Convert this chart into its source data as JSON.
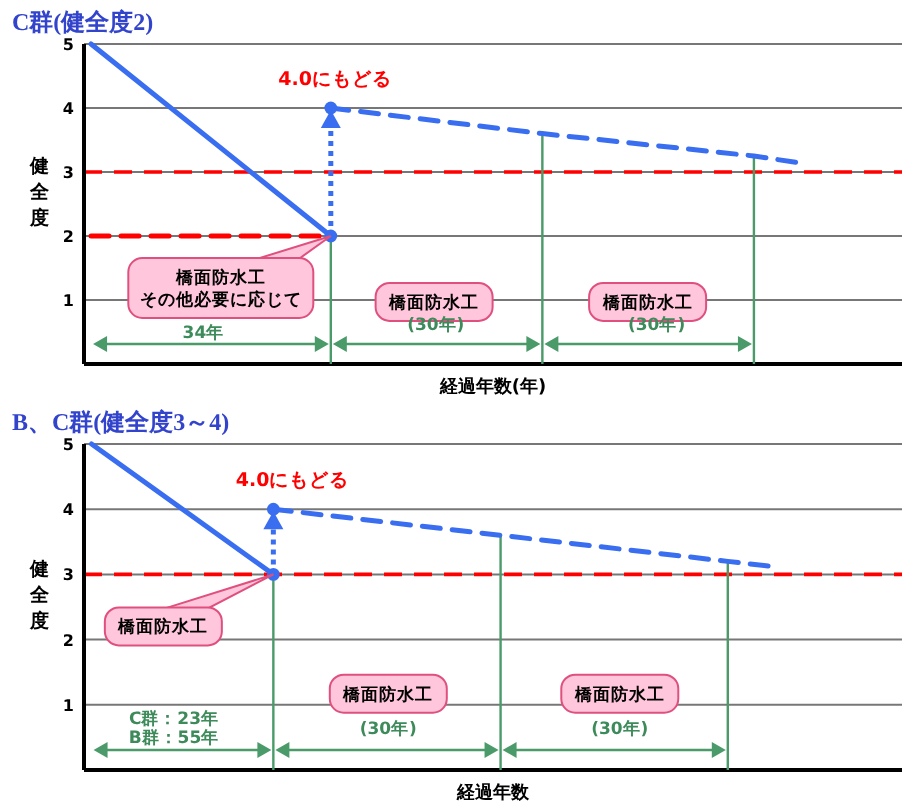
{
  "chart_data": [
    {
      "type": "line",
      "title": "C群(健全度2)",
      "xlabel": "経過年数(年)",
      "ylabel": "健全度",
      "ylim": [
        0,
        5
      ],
      "yticks": [
        1,
        2,
        3,
        4,
        5
      ],
      "tick_labels": "y",
      "grid": "y",
      "categories": [
        null,
        null,
        null,
        null,
        null,
        null,
        null,
        null,
        null,
        null,
        null,
        null,
        null,
        null,
        null,
        null,
        null,
        null,
        null,
        null,
        null,
        null,
        null,
        null,
        null,
        null,
        null,
        null,
        null,
        null,
        null,
        null,
        null,
        null,
        null,
        null,
        null,
        null,
        null,
        null,
        null,
        null,
        null,
        null,
        null,
        null,
        null,
        null,
        null,
        null,
        null,
        null,
        null,
        null,
        null,
        null,
        null,
        null
      ],
      "series": [
        {
          "color": "#3a6ef0",
          "line_style": "solid",
          "values": [
            5,
            null,
            null,
            null,
            null,
            null,
            null,
            null,
            null,
            null,
            null,
            null,
            null,
            null,
            null,
            null,
            null,
            2,
            null,
            null,
            null,
            null,
            null,
            null,
            null,
            null,
            null,
            null,
            null,
            null,
            null,
            null,
            null,
            null,
            null,
            null,
            null,
            null,
            null,
            null,
            null,
            null,
            null,
            null,
            null,
            null,
            null,
            null,
            null,
            null,
            null,
            null,
            null,
            null,
            null,
            null,
            null,
            null
          ]
        },
        {
          "color": "#ff0000",
          "line_style": "dashed",
          "values": [
            2,
            null,
            null,
            null,
            null,
            null,
            null,
            null,
            null,
            null,
            null,
            null,
            null,
            null,
            null,
            null,
            null,
            2,
            null,
            null,
            null,
            null,
            null,
            null,
            null,
            null,
            null,
            null,
            null,
            null,
            null,
            null,
            null,
            null,
            null,
            null,
            null,
            null,
            null,
            null,
            null,
            null,
            null,
            null,
            null,
            null,
            null,
            null,
            null,
            null,
            null,
            null,
            null,
            null,
            null,
            null,
            null,
            null
          ]
        },
        {
          "color": "#3a6ef0",
          "line_style": "dashed",
          "values": [
            null,
            null,
            null,
            null,
            null,
            null,
            null,
            null,
            null,
            null,
            null,
            null,
            null,
            null,
            null,
            null,
            null,
            4,
            null,
            null,
            null,
            null,
            null,
            null,
            null,
            null,
            null,
            null,
            null,
            null,
            null,
            null,
            3.6,
            null,
            null,
            null,
            null,
            null,
            null,
            null,
            null,
            null,
            null,
            null,
            null,
            null,
            null,
            3.25,
            null,
            null,
            3.15,
            null,
            null,
            null,
            null,
            null,
            null,
            null
          ]
        }
      ],
      "ref_lines": [
        {
          "axis": "y",
          "value": 3,
          "color": "#ff0000",
          "line_style": "dashed"
        }
      ],
      "annotations": [
        "橋面防水工その他必要に応じて",
        "橋面防水工",
        "橋面防水工",
        "34年",
        "(30年)",
        "(30年)",
        "4.0にもどる"
      ]
    },
    {
      "type": "line",
      "title": "B、C群(健全度3～4)",
      "xlabel": "経過年数",
      "ylabel": "健全度",
      "ylim": [
        0,
        5
      ],
      "yticks": [
        1,
        2,
        3,
        4,
        5
      ],
      "tick_labels": "y",
      "grid": "y",
      "categories": [
        null,
        null,
        null,
        null,
        null,
        null,
        null,
        null,
        null,
        null,
        null,
        null,
        null,
        null,
        null,
        null,
        null,
        null,
        null,
        null,
        null,
        null,
        null,
        null,
        null,
        null,
        null,
        null,
        null,
        null,
        null,
        null,
        null,
        null,
        null,
        null,
        null,
        null,
        null,
        null,
        null,
        null,
        null,
        null,
        null,
        null,
        null,
        null,
        null,
        null,
        null,
        null,
        null,
        null
      ],
      "series": [
        {
          "color": "#3a6ef0",
          "line_style": "solid",
          "values": [
            5,
            null,
            null,
            null,
            null,
            null,
            null,
            null,
            null,
            null,
            null,
            null,
            3,
            null,
            null,
            null,
            null,
            null,
            null,
            null,
            null,
            null,
            null,
            null,
            null,
            null,
            null,
            null,
            null,
            null,
            null,
            null,
            null,
            null,
            null,
            null,
            null,
            null,
            null,
            null,
            null,
            null,
            null,
            null,
            null,
            null,
            null,
            null,
            null,
            null,
            null,
            null,
            null,
            null
          ]
        },
        {
          "color": "#3a6ef0",
          "line_style": "dashed",
          "values": [
            null,
            null,
            null,
            null,
            null,
            null,
            null,
            null,
            null,
            null,
            null,
            null,
            4,
            null,
            null,
            null,
            null,
            null,
            null,
            null,
            null,
            null,
            null,
            null,
            null,
            null,
            null,
            3.6,
            null,
            null,
            null,
            null,
            null,
            null,
            null,
            null,
            null,
            null,
            null,
            null,
            null,
            null,
            3.2,
            null,
            null,
            3.12,
            null,
            null,
            null,
            null,
            null,
            null,
            null,
            null
          ]
        }
      ],
      "ref_lines": [
        {
          "axis": "y",
          "value": 3,
          "color": "#ff0000",
          "line_style": "dashed"
        }
      ],
      "annotations": [
        "橋面防水工",
        "橋面防水工",
        "橋面防水工",
        "C群：23年",
        "B群：55年",
        "(30年)",
        "(30年)",
        "4.0にもどる"
      ]
    }
  ]
}
